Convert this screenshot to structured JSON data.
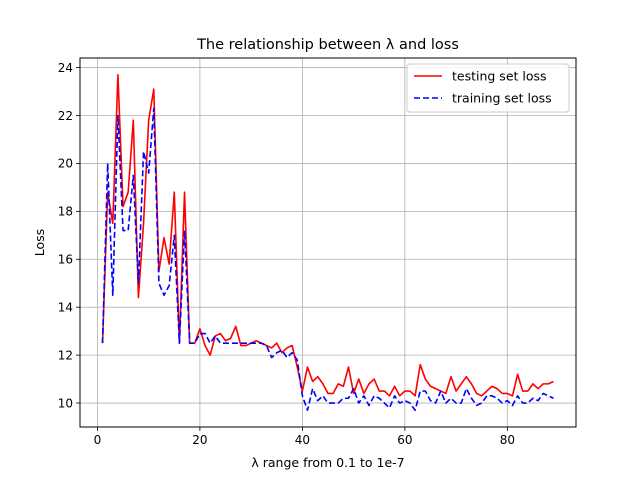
{
  "chart_data": {
    "type": "line",
    "title": "The relationship between λ and loss",
    "xlabel": "λ range from 0.1 to 1e-7",
    "ylabel": "Loss",
    "xlim": [
      -3.4,
      93.4
    ],
    "ylim": [
      9.0,
      24.4
    ],
    "xticks": [
      0,
      20,
      40,
      60,
      80
    ],
    "yticks": [
      10,
      12,
      14,
      16,
      18,
      20,
      22,
      24
    ],
    "grid": true,
    "legend_position": "top-right",
    "x": [
      1,
      2,
      3,
      4,
      5,
      6,
      7,
      8,
      9,
      10,
      11,
      12,
      13,
      14,
      15,
      16,
      17,
      18,
      19,
      20,
      21,
      22,
      23,
      24,
      25,
      26,
      27,
      28,
      29,
      30,
      31,
      32,
      33,
      34,
      35,
      36,
      37,
      38,
      39,
      40,
      41,
      42,
      43,
      44,
      45,
      46,
      47,
      48,
      49,
      50,
      51,
      52,
      53,
      54,
      55,
      56,
      57,
      58,
      59,
      60,
      61,
      62,
      63,
      64,
      65,
      66,
      67,
      68,
      69,
      70,
      71,
      72,
      73,
      74,
      75,
      76,
      77,
      78,
      79,
      80,
      81,
      82,
      83,
      84,
      85,
      86,
      87,
      88,
      89
    ],
    "series": [
      {
        "name": "testing set loss",
        "color": "#ff0000",
        "dash": "solid",
        "values": [
          12.5,
          18.8,
          17.5,
          23.7,
          18.2,
          18.8,
          21.8,
          14.4,
          17.5,
          21.8,
          23.1,
          15.5,
          16.9,
          15.8,
          18.8,
          12.5,
          18.8,
          12.5,
          12.5,
          13.1,
          12.4,
          12.0,
          12.8,
          12.9,
          12.6,
          12.7,
          13.2,
          12.4,
          12.4,
          12.5,
          12.6,
          12.5,
          12.4,
          12.3,
          12.5,
          12.1,
          12.3,
          12.4,
          11.5,
          10.5,
          11.5,
          10.9,
          11.1,
          10.8,
          10.4,
          10.4,
          10.8,
          10.7,
          11.5,
          10.4,
          11.0,
          10.4,
          10.8,
          11.0,
          10.5,
          10.5,
          10.3,
          10.7,
          10.3,
          10.5,
          10.5,
          10.3,
          11.6,
          11.0,
          10.7,
          10.6,
          10.5,
          10.4,
          11.1,
          10.5,
          10.8,
          11.1,
          10.8,
          10.4,
          10.3,
          10.5,
          10.7,
          10.6,
          10.4,
          10.4,
          10.3,
          11.2,
          10.5,
          10.5,
          10.8,
          10.6,
          10.8,
          10.8,
          10.9
        ]
      },
      {
        "name": "training set loss",
        "color": "#0000ff",
        "dash": "dashed",
        "values": [
          12.5,
          20.0,
          14.5,
          22.0,
          17.2,
          17.2,
          19.5,
          15.0,
          20.5,
          19.6,
          22.3,
          15.0,
          14.5,
          14.9,
          17.0,
          12.5,
          17.2,
          12.5,
          12.5,
          12.9,
          12.9,
          12.5,
          12.8,
          12.5,
          12.5,
          12.5,
          12.5,
          12.5,
          12.5,
          12.5,
          12.5,
          12.5,
          12.4,
          11.9,
          12.1,
          12.2,
          11.9,
          12.1,
          11.8,
          10.3,
          9.7,
          10.6,
          10.1,
          10.3,
          10.0,
          10.0,
          10.0,
          10.2,
          10.2,
          10.6,
          10.0,
          10.3,
          9.9,
          10.3,
          10.2,
          10.0,
          9.8,
          10.3,
          10.0,
          10.1,
          10.0,
          9.7,
          10.5,
          10.5,
          10.1,
          10.0,
          10.5,
          10.0,
          10.2,
          10.0,
          10.0,
          10.6,
          10.2,
          9.9,
          10.0,
          10.3,
          10.3,
          10.2,
          10.0,
          10.1,
          9.9,
          10.3,
          10.0,
          10.0,
          10.2,
          10.1,
          10.4,
          10.3,
          10.2
        ]
      }
    ]
  }
}
